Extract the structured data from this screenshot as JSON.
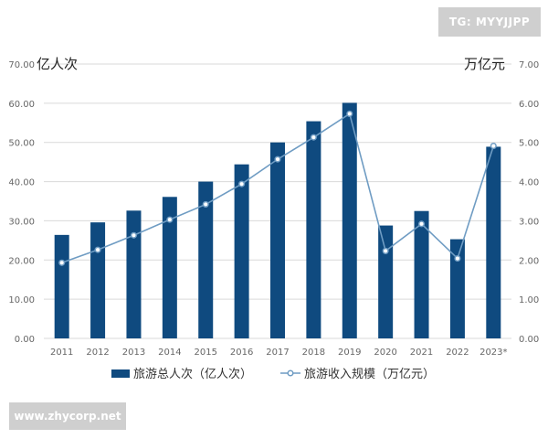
{
  "watermarks": {
    "top": "TG: MYYJJPP",
    "bottom": "www.zhycorp.net"
  },
  "colors": {
    "bar": "#0f4a7f",
    "line": "#6f9cc3",
    "marker_fill": "#ffffff",
    "grid": "#d9d9d9"
  },
  "chart_data": {
    "type": "bar",
    "categories": [
      "2011",
      "2012",
      "2013",
      "2014",
      "2015",
      "2016",
      "2017",
      "2018",
      "2019",
      "2020",
      "2021",
      "2022",
      "2023*"
    ],
    "ylabel": "亿人次",
    "y2label": "万亿元",
    "ylim": [
      0,
      70
    ],
    "y2lim": [
      0,
      7
    ],
    "yticks": [
      "0.00",
      "10.00",
      "20.00",
      "30.00",
      "40.00",
      "50.00",
      "60.00",
      "70.00"
    ],
    "y2ticks": [
      "0.00",
      "1.00",
      "2.00",
      "3.00",
      "4.00",
      "5.00",
      "6.00",
      "7.00"
    ],
    "grid": true,
    "legend_position": "bottom",
    "series": [
      {
        "name": "旅游总人次（亿人次）",
        "type": "bar",
        "axis": "left",
        "values": [
          26.4,
          29.6,
          32.6,
          36.1,
          40.0,
          44.4,
          50.0,
          55.4,
          60.1,
          28.8,
          32.5,
          25.3,
          48.9
        ]
      },
      {
        "name": "旅游收入规模（万亿元）",
        "type": "line",
        "axis": "right",
        "values": [
          1.93,
          2.26,
          2.63,
          3.03,
          3.42,
          3.94,
          4.57,
          5.13,
          5.73,
          2.23,
          2.92,
          2.04,
          4.91
        ]
      }
    ]
  }
}
